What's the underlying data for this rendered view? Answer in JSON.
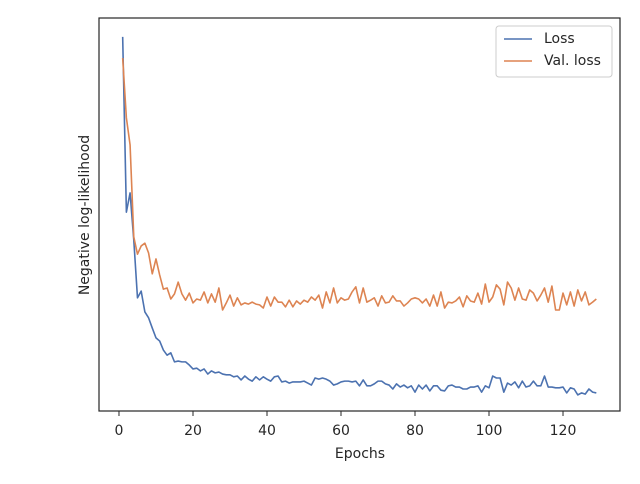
{
  "chart_data": {
    "type": "line",
    "xlabel": "Epochs",
    "ylabel": "Negative log-likelihood",
    "x": [
      1,
      2,
      3,
      4,
      5,
      6,
      7,
      8,
      9,
      10,
      11,
      12,
      13,
      14,
      15,
      16,
      17,
      18,
      19,
      20,
      21,
      22,
      23,
      24,
      25,
      26,
      27,
      28,
      29,
      30,
      31,
      32,
      33,
      34,
      35,
      36,
      37,
      38,
      39,
      40,
      41,
      42,
      43,
      44,
      45,
      46,
      47,
      48,
      49,
      50,
      51,
      52,
      53,
      54,
      55,
      56,
      57,
      58,
      59,
      60,
      61,
      62,
      63,
      64,
      65,
      66,
      67,
      68,
      69,
      70,
      71,
      72,
      73,
      74,
      75,
      76,
      77,
      78,
      79,
      80,
      81,
      82,
      83,
      84,
      85,
      86,
      87,
      88,
      89,
      90,
      91,
      92,
      93,
      94,
      95,
      96,
      97,
      98,
      99,
      100,
      101,
      102,
      103,
      104,
      105,
      106,
      107,
      108,
      109,
      110,
      111,
      112,
      113,
      114,
      115,
      116,
      117,
      118,
      119,
      120,
      121,
      122,
      123,
      124,
      125,
      126,
      127,
      128,
      129
    ],
    "series": [
      {
        "name": "Loss",
        "color": "#4c72b0",
        "values": [
          95.2,
          50.6,
          55.5,
          43.5,
          28.8,
          30.5,
          25.2,
          23.7,
          21.1,
          18.6,
          17.8,
          15.5,
          14.2,
          14.8,
          12.5,
          12.7,
          12.5,
          12.5,
          11.7,
          10.7,
          10.9,
          10.2,
          10.7,
          9.4,
          10.2,
          9.7,
          9.9,
          9.4,
          9.2,
          9.2,
          8.7,
          8.9,
          7.9,
          8.9,
          8.1,
          7.6,
          8.7,
          7.9,
          8.7,
          8.1,
          7.6,
          8.7,
          8.9,
          7.4,
          7.6,
          7.1,
          7.4,
          7.4,
          7.4,
          7.6,
          7.1,
          6.6,
          8.4,
          8.1,
          8.4,
          8.1,
          7.6,
          6.6,
          6.9,
          7.4,
          7.6,
          7.6,
          7.4,
          7.6,
          6.4,
          7.9,
          6.4,
          6.4,
          6.9,
          7.6,
          7.6,
          6.9,
          6.6,
          5.6,
          6.9,
          6.1,
          6.6,
          5.9,
          6.4,
          4.8,
          6.6,
          5.6,
          6.6,
          5.1,
          6.4,
          6.4,
          5.3,
          5.1,
          6.4,
          6.6,
          6.1,
          6.1,
          5.6,
          5.6,
          6.1,
          6.1,
          6.4,
          4.8,
          6.4,
          5.9,
          8.9,
          8.4,
          8.4,
          4.8,
          7.1,
          6.6,
          7.4,
          5.9,
          7.6,
          6.1,
          6.4,
          7.6,
          6.4,
          6.4,
          8.9,
          6.1,
          6.1,
          5.9,
          5.9,
          6.1,
          4.6,
          5.9,
          5.6,
          4.1,
          4.6,
          4.3,
          5.6,
          4.8,
          4.6
        ]
      },
      {
        "name": "Val. loss",
        "color": "#dd8452",
        "values": [
          89.8,
          74.6,
          67.7,
          44.3,
          39.9,
          42.0,
          42.7,
          40.2,
          34.9,
          38.7,
          34.6,
          31.0,
          31.3,
          28.5,
          29.8,
          32.8,
          29.8,
          28.2,
          30.0,
          27.5,
          28.5,
          28.2,
          30.3,
          27.5,
          29.8,
          27.7,
          31.3,
          25.7,
          27.5,
          29.5,
          26.7,
          28.8,
          27.0,
          27.5,
          27.2,
          27.7,
          27.2,
          27.0,
          26.2,
          29.0,
          26.7,
          29.0,
          27.7,
          27.7,
          26.5,
          28.2,
          26.5,
          28.0,
          27.2,
          28.2,
          27.7,
          29.0,
          28.2,
          29.5,
          26.2,
          30.3,
          27.5,
          31.3,
          27.5,
          28.8,
          28.2,
          28.5,
          30.3,
          31.6,
          27.5,
          31.3,
          27.7,
          28.2,
          28.8,
          26.7,
          29.3,
          27.5,
          27.7,
          29.3,
          28.0,
          28.0,
          26.7,
          27.5,
          28.5,
          28.8,
          28.5,
          27.5,
          28.5,
          26.7,
          29.5,
          26.7,
          30.3,
          26.2,
          27.7,
          27.5,
          28.0,
          29.0,
          26.5,
          29.3,
          28.0,
          27.7,
          30.0,
          27.2,
          32.3,
          27.7,
          29.0,
          32.1,
          31.0,
          27.0,
          32.8,
          31.3,
          28.2,
          31.3,
          28.5,
          28.2,
          30.8,
          30.0,
          28.0,
          29.5,
          31.3,
          27.7,
          31.8,
          25.7,
          25.7,
          30.0,
          27.0,
          30.3,
          26.7,
          30.8,
          28.0,
          30.3,
          27.0,
          27.7,
          28.5
        ]
      }
    ],
    "xlim": [
      -5.4,
      135.4
    ],
    "xticks": [
      0,
      20,
      40,
      60,
      80,
      100,
      120
    ],
    "ylim": [
      0,
      100
    ],
    "legend": "upper right"
  }
}
